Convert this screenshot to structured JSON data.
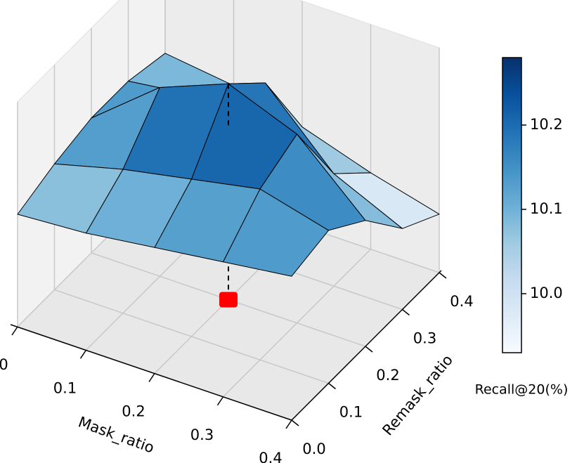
{
  "chart_data": {
    "type": "surface3d",
    "xlabel": "Mask_ratio",
    "ylabel": "Remask_ratio",
    "x": [
      0,
      0.1,
      0.2,
      0.3,
      0.4
    ],
    "y": [
      0,
      0.1,
      0.2,
      0.3,
      0.4
    ],
    "z": [
      [
        10.05,
        10.08,
        10.1,
        10.1,
        10.08
      ],
      [
        10.06,
        10.12,
        10.22,
        10.12,
        10.06
      ],
      [
        10.08,
        10.15,
        10.28,
        10.2,
        10.02
      ],
      [
        10.1,
        10.18,
        10.22,
        10.05,
        9.97
      ],
      [
        10.12,
        10.14,
        10.08,
        9.98,
        9.93
      ]
    ],
    "xlim": [
      0,
      0.4
    ],
    "ylim": [
      0,
      0.4
    ],
    "zlim": [
      9.8,
      10.3
    ],
    "xticks": [
      {
        "value": 0,
        "label": "0.0"
      },
      0.1,
      0.2,
      0.3,
      0.4
    ],
    "yticks": [
      {
        "value": 0,
        "label": "0.0"
      },
      0.1,
      0.2,
      0.3,
      0.4
    ],
    "colormap": [
      "#f7fbff",
      "#deebf7",
      "#c6dbef",
      "#9ecae1",
      "#6baed6",
      "#4292c6",
      "#2171b5",
      "#08519c",
      "#08306b"
    ],
    "colorbar": {
      "label": "Recall@20(%)",
      "lim": [
        9.93,
        10.28
      ],
      "ticks": [
        {
          "value": 10,
          "label": "10.0"
        },
        10.1,
        10.2
      ]
    },
    "highlight": {
      "x": 0.2,
      "y": 0.2,
      "color": "#ff0000"
    }
  }
}
